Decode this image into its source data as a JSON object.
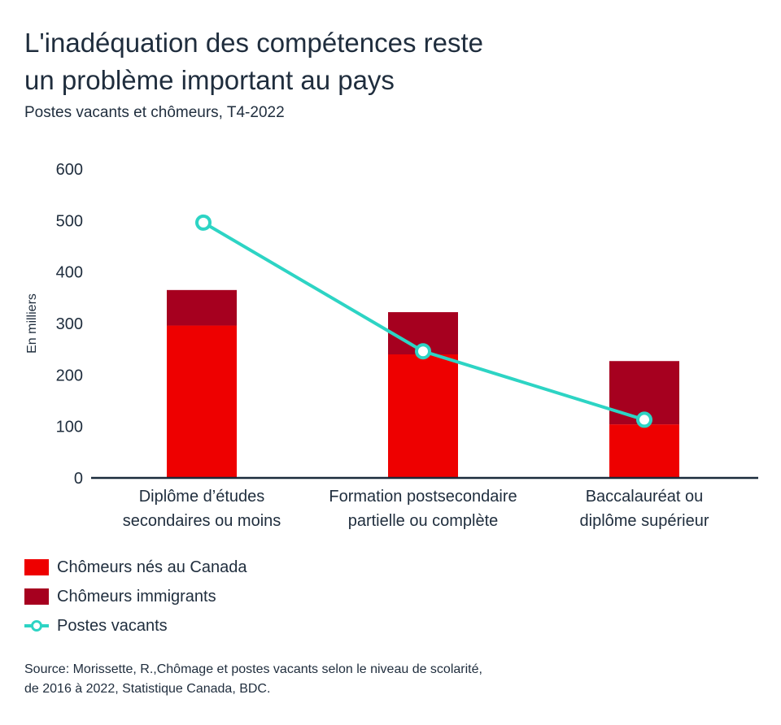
{
  "title_line1": "L'inadéquation des compétences reste",
  "title_line2": "un problème important au pays",
  "subtitle": "Postes vacants et chômeurs, T4-2022",
  "colors": {
    "canada_born": "#ee0000",
    "immigrants": "#a6001f",
    "vacancies": "#2dd4c4",
    "axis": "#1a2b3c"
  },
  "chart_data": {
    "type": "bar",
    "stacked": true,
    "ylabel": "En milliers",
    "ylim": [
      0,
      600
    ],
    "yticks": [
      0,
      100,
      200,
      300,
      400,
      500,
      600
    ],
    "categories": [
      [
        "Diplôme d’études",
        "secondaires ou moins"
      ],
      [
        "Formation postsecondaire",
        "partielle ou complète"
      ],
      [
        "Baccalauréat ou",
        "diplôme supérieur"
      ]
    ],
    "series": [
      {
        "name": "Chômeurs nés au Canada",
        "type": "bar",
        "values": [
          296,
          240,
          104
        ]
      },
      {
        "name": "Chômeurs immigrants",
        "type": "bar",
        "values": [
          69,
          82,
          123
        ]
      },
      {
        "name": "Postes vacants",
        "type": "line",
        "values": [
          496,
          246,
          113
        ]
      }
    ],
    "grid": false,
    "legend": "bottom-left"
  },
  "legend": {
    "item1": "Chômeurs nés au Canada",
    "item2": "Chômeurs immigrants",
    "item3": "Postes vacants"
  },
  "source_line1": "Source: Morissette, R.,Chômage et postes vacants selon le niveau de scolarité,",
  "source_line2": "de 2016 à 2022, Statistique Canada, BDC."
}
